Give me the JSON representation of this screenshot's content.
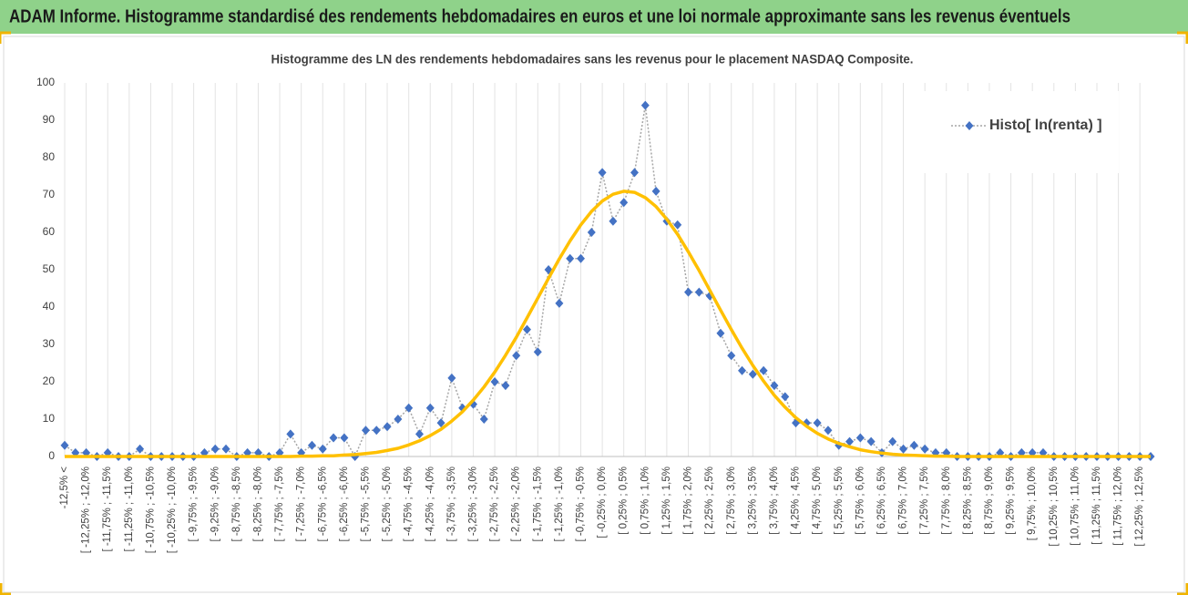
{
  "header": {
    "title": "ADAM Informe. Histogramme standardisé des rendements hebdomadaires en euros et une loi normale approximante sans les revenus éventuels"
  },
  "chart_data": {
    "type": "line",
    "title": "Histogramme des LN des rendements hebdomadaires sans les revenus pour le placement NASDAQ Composite.",
    "categories": [
      "-12,5% <",
      null,
      "[ -12,25% ; -12,0%",
      null,
      "[ -11,75% ; -11,5%",
      null,
      "[ -11,25% ; -11,0%",
      null,
      "[ -10,75% ; -10,5%",
      null,
      "[ -10,25% ; -10,0%",
      null,
      "[ -9,75% ; -9,5%",
      null,
      "[ -9,25% ; -9,0%",
      null,
      "[ -8,75% ; -8,5%",
      null,
      "[ -8,25% ; -8,0%",
      null,
      "[ -7,75% ; -7,5%",
      null,
      "[ -7,25% ; -7,0%",
      null,
      "[ -6,75% ; -6,5%",
      null,
      "[ -6,25% ; -6,0%",
      null,
      "[ -5,75% ; -5,5%",
      null,
      "[ -5,25% ; -5,0%",
      null,
      "[ -4,75% ; -4,5%",
      null,
      "[ -4,25% ; -4,0%",
      null,
      "[ -3,75% ; -3,5%",
      null,
      "[ -3,25% ; -3,0%",
      null,
      "[ -2,75% ; -2,5%",
      null,
      "[ -2,25% ; -2,0%",
      null,
      "[ -1,75% ; -1,5%",
      null,
      "[ -1,25% ; -1,0%",
      null,
      "[ -0,75% ; -0,5%",
      null,
      "[ -0,25% ; 0,0%",
      null,
      "[ 0,25% ; 0,5%",
      null,
      "[ 0,75% ; 1,0%",
      null,
      "[ 1,25% ; 1,5%",
      null,
      "[ 1,75% ; 2,0%",
      null,
      "[ 2,25% ; 2,5%",
      null,
      "[ 2,75% ; 3,0%",
      null,
      "[ 3,25% ; 3,5%",
      null,
      "[ 3,75% ; 4,0%",
      null,
      "[ 4,25% ; 4,5%",
      null,
      "[ 4,75% ; 5,0%",
      null,
      "[ 5,25% ; 5,5%",
      null,
      "[ 5,75% ; 6,0%",
      null,
      "[ 6,25% ; 6,5%",
      null,
      "[ 6,75% ; 7,0%",
      null,
      "[ 7,25% ; 7,5%",
      null,
      "[ 7,75% ; 8,0%",
      null,
      "[ 8,25% ; 8,5%",
      null,
      "[ 8,75% ; 9,0%",
      null,
      "[ 9,25% ; 9,5%",
      null,
      "[ 9,75% ; 10,0%",
      null,
      "[ 10,25% ; 10,5%",
      null,
      "[ 10,75% ; 11,0%",
      null,
      "[ 11,25% ; 11,5%",
      null,
      "[ 11,75% ; 12,0%",
      null,
      "[ 12,25% ; 12,5%",
      null
    ],
    "series": [
      {
        "name": "Histo[ ln(renta) ]",
        "color": "#4472c4",
        "line_color": "#a5a5a5",
        "values": [
          3,
          1,
          1,
          0,
          1,
          0,
          0,
          2,
          0,
          0,
          0,
          0,
          0,
          1,
          2,
          2,
          0,
          1,
          1,
          0,
          1,
          6,
          1,
          3,
          2,
          5,
          5,
          0,
          7,
          7,
          8,
          10,
          13,
          6,
          13,
          9,
          21,
          13,
          14,
          10,
          20,
          19,
          27,
          34,
          28,
          50,
          41,
          53,
          53,
          60,
          76,
          63,
          68,
          76,
          94,
          71,
          63,
          62,
          44,
          44,
          43,
          33,
          27,
          23,
          22,
          23,
          19,
          16,
          9,
          9,
          9,
          7,
          3,
          4,
          5,
          4,
          1,
          4,
          2,
          3,
          2,
          1,
          1,
          0,
          0,
          0,
          0,
          1,
          0,
          1,
          1,
          1,
          0,
          0,
          0,
          0,
          0,
          0,
          0,
          0,
          0,
          0
        ]
      },
      {
        "color": "#ffc000",
        "values": [
          0,
          0,
          0,
          0,
          0,
          0,
          0,
          0,
          0,
          0,
          0,
          0,
          0,
          0,
          0,
          0,
          0,
          0,
          0,
          0,
          0,
          0,
          0.1,
          0.1,
          0.2,
          0.2,
          0.4,
          0.5,
          0.8,
          1.1,
          1.6,
          2.2,
          3.1,
          4.2,
          5.6,
          7.3,
          9.5,
          12,
          15.1,
          18.6,
          22.6,
          27.1,
          31.9,
          37.1,
          42.4,
          47.7,
          52.9,
          57.7,
          62,
          65.6,
          68.4,
          70.2,
          71,
          70.7,
          69.3,
          66.9,
          63.5,
          59.5,
          54.8,
          49.8,
          44.5,
          39.2,
          34,
          29,
          24.4,
          20.2,
          16.4,
          13.2,
          10.4,
          8.1,
          6.2,
          4.7,
          3.5,
          2.6,
          1.8,
          1.3,
          0.9,
          0.6,
          0.4,
          0.3,
          0.2,
          0.1,
          0.1,
          0,
          0,
          0,
          0,
          0,
          0,
          0,
          0,
          0,
          0,
          0,
          0,
          0,
          0,
          0,
          0,
          0,
          0,
          0
        ]
      }
    ],
    "ylim": [
      0,
      100
    ],
    "yticks": [
      0,
      10,
      20,
      30,
      40,
      50,
      60,
      70,
      80,
      90,
      100
    ],
    "grid": "x",
    "legend": "top-right"
  }
}
